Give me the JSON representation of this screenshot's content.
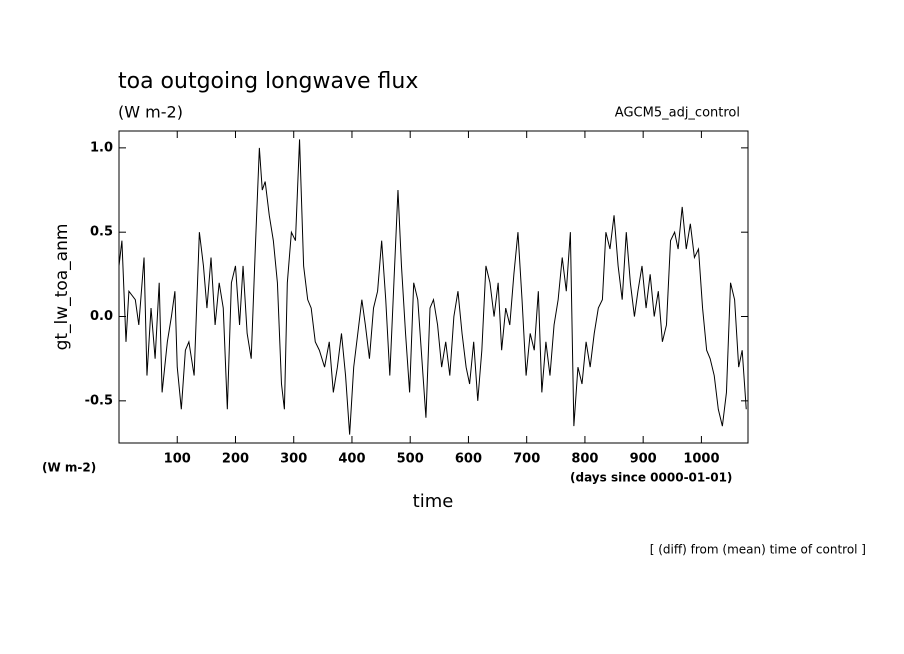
{
  "chart_data": {
    "type": "line",
    "title": "toa outgoing longwave flux",
    "subtitle": "(W m-2)",
    "annotation": "AGCM5_adj_control",
    "y_label": "gt_lw_toa_anm",
    "y_unit": "(W m-2)",
    "x_unit": "(days since 0000-01-01)",
    "x_label": "time",
    "footnote": "[ (diff) from (mean) time of control ]",
    "xlim": [
      0,
      1080
    ],
    "ylim": [
      -0.75,
      1.1
    ],
    "xticks": [
      100,
      200,
      300,
      400,
      500,
      600,
      700,
      800,
      900,
      1000
    ],
    "yticks": [
      {
        "value": 1,
        "label": "1.0"
      },
      {
        "value": 0.5,
        "label": "0.5"
      },
      {
        "value": 0,
        "label": "0.0"
      },
      {
        "value": -0.5,
        "label": "-0.5"
      }
    ],
    "x": [
      0,
      5,
      12,
      17,
      28,
      34,
      43,
      48,
      55,
      62,
      69,
      74,
      83,
      90,
      96,
      100,
      107,
      114,
      120,
      129,
      138,
      145,
      151,
      158,
      165,
      172,
      179,
      186,
      193,
      200,
      207,
      213,
      220,
      227,
      234,
      241,
      246,
      251,
      258,
      265,
      272,
      279,
      284,
      289,
      296,
      303,
      310,
      317,
      324,
      330,
      337,
      344,
      353,
      361,
      368,
      375,
      382,
      389,
      396,
      403,
      410,
      417,
      423,
      430,
      437,
      444,
      451,
      458,
      465,
      472,
      479,
      485,
      492,
      499,
      506,
      513,
      520,
      527,
      534,
      540,
      547,
      554,
      561,
      568,
      575,
      582,
      589,
      596,
      602,
      609,
      616,
      623,
      630,
      637,
      644,
      651,
      657,
      664,
      671,
      678,
      685,
      692,
      699,
      706,
      713,
      720,
      726,
      733,
      740,
      747,
      754,
      761,
      768,
      775,
      781,
      788,
      795,
      802,
      809,
      816,
      823,
      830,
      836,
      843,
      850,
      857,
      864,
      871,
      878,
      885,
      891,
      898,
      905,
      912,
      919,
      926,
      933,
      940,
      947,
      954,
      960,
      967,
      974,
      981,
      988,
      995,
      1002,
      1009,
      1015,
      1022,
      1029,
      1036,
      1043,
      1050,
      1057,
      1064,
      1070,
      1077
    ],
    "series": [
      {
        "name": "gt_lw_toa_anm",
        "color": "#000000",
        "values": [
          0.3,
          0.45,
          -0.15,
          0.15,
          0.1,
          -0.05,
          0.35,
          -0.35,
          0.05,
          -0.25,
          0.2,
          -0.45,
          -0.15,
          0.0,
          0.15,
          -0.3,
          -0.55,
          -0.2,
          -0.15,
          -0.35,
          0.5,
          0.3,
          0.05,
          0.35,
          -0.05,
          0.2,
          0.05,
          -0.55,
          0.2,
          0.3,
          -0.05,
          0.3,
          -0.1,
          -0.25,
          0.4,
          1.0,
          0.75,
          0.8,
          0.6,
          0.45,
          0.2,
          -0.4,
          -0.55,
          0.2,
          0.5,
          0.45,
          1.05,
          0.3,
          0.1,
          0.05,
          -0.15,
          -0.2,
          -0.3,
          -0.15,
          -0.45,
          -0.3,
          -0.1,
          -0.35,
          -0.7,
          -0.3,
          -0.1,
          0.1,
          -0.05,
          -0.25,
          0.05,
          0.15,
          0.45,
          0.1,
          -0.35,
          0.2,
          0.75,
          0.3,
          -0.1,
          -0.45,
          0.2,
          0.1,
          -0.25,
          -0.6,
          0.05,
          0.1,
          -0.05,
          -0.3,
          -0.15,
          -0.35,
          0.0,
          0.15,
          -0.1,
          -0.3,
          -0.4,
          -0.15,
          -0.5,
          -0.2,
          0.3,
          0.2,
          0.0,
          0.2,
          -0.2,
          0.05,
          -0.05,
          0.25,
          0.5,
          0.1,
          -0.35,
          -0.1,
          -0.2,
          0.15,
          -0.45,
          -0.15,
          -0.35,
          -0.05,
          0.1,
          0.35,
          0.15,
          0.5,
          -0.65,
          -0.3,
          -0.4,
          -0.15,
          -0.3,
          -0.1,
          0.05,
          0.1,
          0.5,
          0.4,
          0.6,
          0.3,
          0.1,
          0.5,
          0.2,
          0.0,
          0.15,
          0.3,
          0.05,
          0.25,
          0.0,
          0.15,
          -0.15,
          -0.05,
          0.45,
          0.5,
          0.4,
          0.65,
          0.4,
          0.55,
          0.35,
          0.4,
          0.05,
          -0.2,
          -0.25,
          -0.35,
          -0.55,
          -0.65,
          -0.45,
          0.2,
          0.1,
          -0.3,
          -0.2,
          -0.55
        ]
      }
    ]
  }
}
